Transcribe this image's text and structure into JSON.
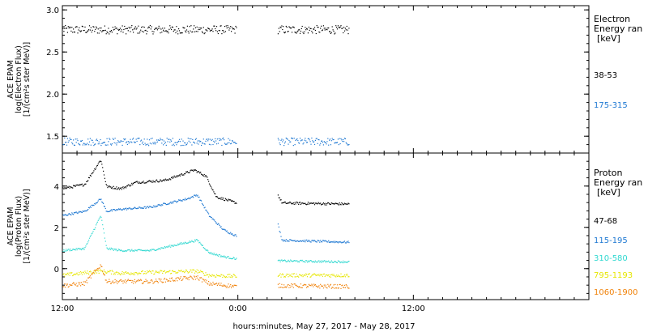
{
  "chart_data": [
    {
      "type": "scatter",
      "ylabel_lines": [
        "ACE EPAM",
        "log(Electron Flux)",
        "[1/(cm²s ster MeV)]"
      ],
      "ylim": [
        1.3,
        3.05
      ],
      "yticks": [
        "1.5",
        "2.0",
        "2.5",
        "3.0"
      ],
      "yticks_values": [
        1.5,
        2.0,
        2.5,
        3.0
      ],
      "legend_title_lines": [
        "Electron",
        "Energy ran",
        "[keV]"
      ],
      "time_range_hours": [
        12,
        48
      ],
      "gap_hours": [
        [
          23.9,
          26.7
        ],
        [
          31.6,
          48
        ]
      ],
      "series": [
        {
          "name": "38-53",
          "color": "#000000",
          "level": 2.77,
          "noise": 0.05
        },
        {
          "name": "175-315",
          "color": "#1e78d2",
          "level": 1.44,
          "noise": 0.045
        }
      ]
    },
    {
      "type": "scatter",
      "ylabel_lines": [
        "ACE EPAM",
        "log(Proton Flux)",
        "[1/(cm²s ster MeV)]"
      ],
      "ylim": [
        -1.5,
        5.6
      ],
      "yticks": [
        "0",
        "2",
        "4"
      ],
      "yticks_values": [
        0,
        2,
        4
      ],
      "legend_title_lines": [
        "Proton",
        "Energy ran",
        "[keV]"
      ],
      "time_range_hours": [
        12,
        48
      ],
      "gap_hours": [
        [
          23.9,
          26.7
        ],
        [
          31.6,
          48
        ]
      ],
      "series": [
        {
          "name": "47-68",
          "color": "#000000",
          "profile": [
            [
              12,
              3.9
            ],
            [
              13.5,
              4.1
            ],
            [
              14.6,
              5.3
            ],
            [
              15,
              4.0
            ],
            [
              16,
              3.9
            ],
            [
              17,
              4.2
            ],
            [
              19,
              4.3
            ],
            [
              21,
              4.8
            ],
            [
              21.8,
              4.5
            ],
            [
              22.5,
              3.5
            ],
            [
              23.9,
              3.2
            ],
            [
              26.7,
              3.6
            ],
            [
              27,
              3.2
            ],
            [
              31.6,
              3.15
            ]
          ],
          "noise": 0.06
        },
        {
          "name": "115-195",
          "color": "#1e78d2",
          "profile": [
            [
              12,
              2.6
            ],
            [
              13.5,
              2.8
            ],
            [
              14.6,
              3.4
            ],
            [
              15,
              2.8
            ],
            [
              16,
              2.9
            ],
            [
              18,
              3.0
            ],
            [
              20.5,
              3.4
            ],
            [
              21.2,
              3.6
            ],
            [
              22,
              2.6
            ],
            [
              23,
              1.9
            ],
            [
              23.9,
              1.6
            ],
            [
              26.7,
              2.2
            ],
            [
              27,
              1.4
            ],
            [
              31.6,
              1.3
            ]
          ],
          "noise": 0.05
        },
        {
          "name": "310-580",
          "color": "#30d8d0",
          "profile": [
            [
              12,
              0.9
            ],
            [
              13.5,
              1.0
            ],
            [
              14.6,
              2.6
            ],
            [
              15,
              1.0
            ],
            [
              16,
              0.9
            ],
            [
              18,
              0.9
            ],
            [
              21.2,
              1.4
            ],
            [
              22,
              0.8
            ],
            [
              23,
              0.6
            ],
            [
              23.9,
              0.5
            ],
            [
              26.7,
              0.4
            ],
            [
              31.6,
              0.35
            ]
          ],
          "noise": 0.05
        },
        {
          "name": "795-1193",
          "color": "#e6e600",
          "profile": [
            [
              12,
              -0.3
            ],
            [
              14.6,
              -0.1
            ],
            [
              16,
              -0.2
            ],
            [
              21.2,
              -0.1
            ],
            [
              22,
              -0.3
            ],
            [
              23.9,
              -0.35
            ],
            [
              26.7,
              -0.3
            ],
            [
              31.6,
              -0.3
            ]
          ],
          "noise": 0.09
        },
        {
          "name": "1060-1900",
          "color": "#f0820a",
          "profile": [
            [
              12,
              -0.8
            ],
            [
              13.5,
              -0.7
            ],
            [
              14.6,
              0.2
            ],
            [
              15,
              -0.6
            ],
            [
              18,
              -0.6
            ],
            [
              21.2,
              -0.4
            ],
            [
              22,
              -0.7
            ],
            [
              23.9,
              -0.85
            ],
            [
              26.7,
              -0.8
            ],
            [
              31.6,
              -0.85
            ]
          ],
          "noise": 0.1
        }
      ]
    }
  ],
  "x_axis": {
    "ticks": [
      "12:00",
      "0:00",
      "12:00"
    ],
    "ticks_hours": [
      12,
      24,
      36
    ],
    "minor_step_hours": 1,
    "label": "hours:minutes, May 27, 2017 - May 28, 2017"
  }
}
